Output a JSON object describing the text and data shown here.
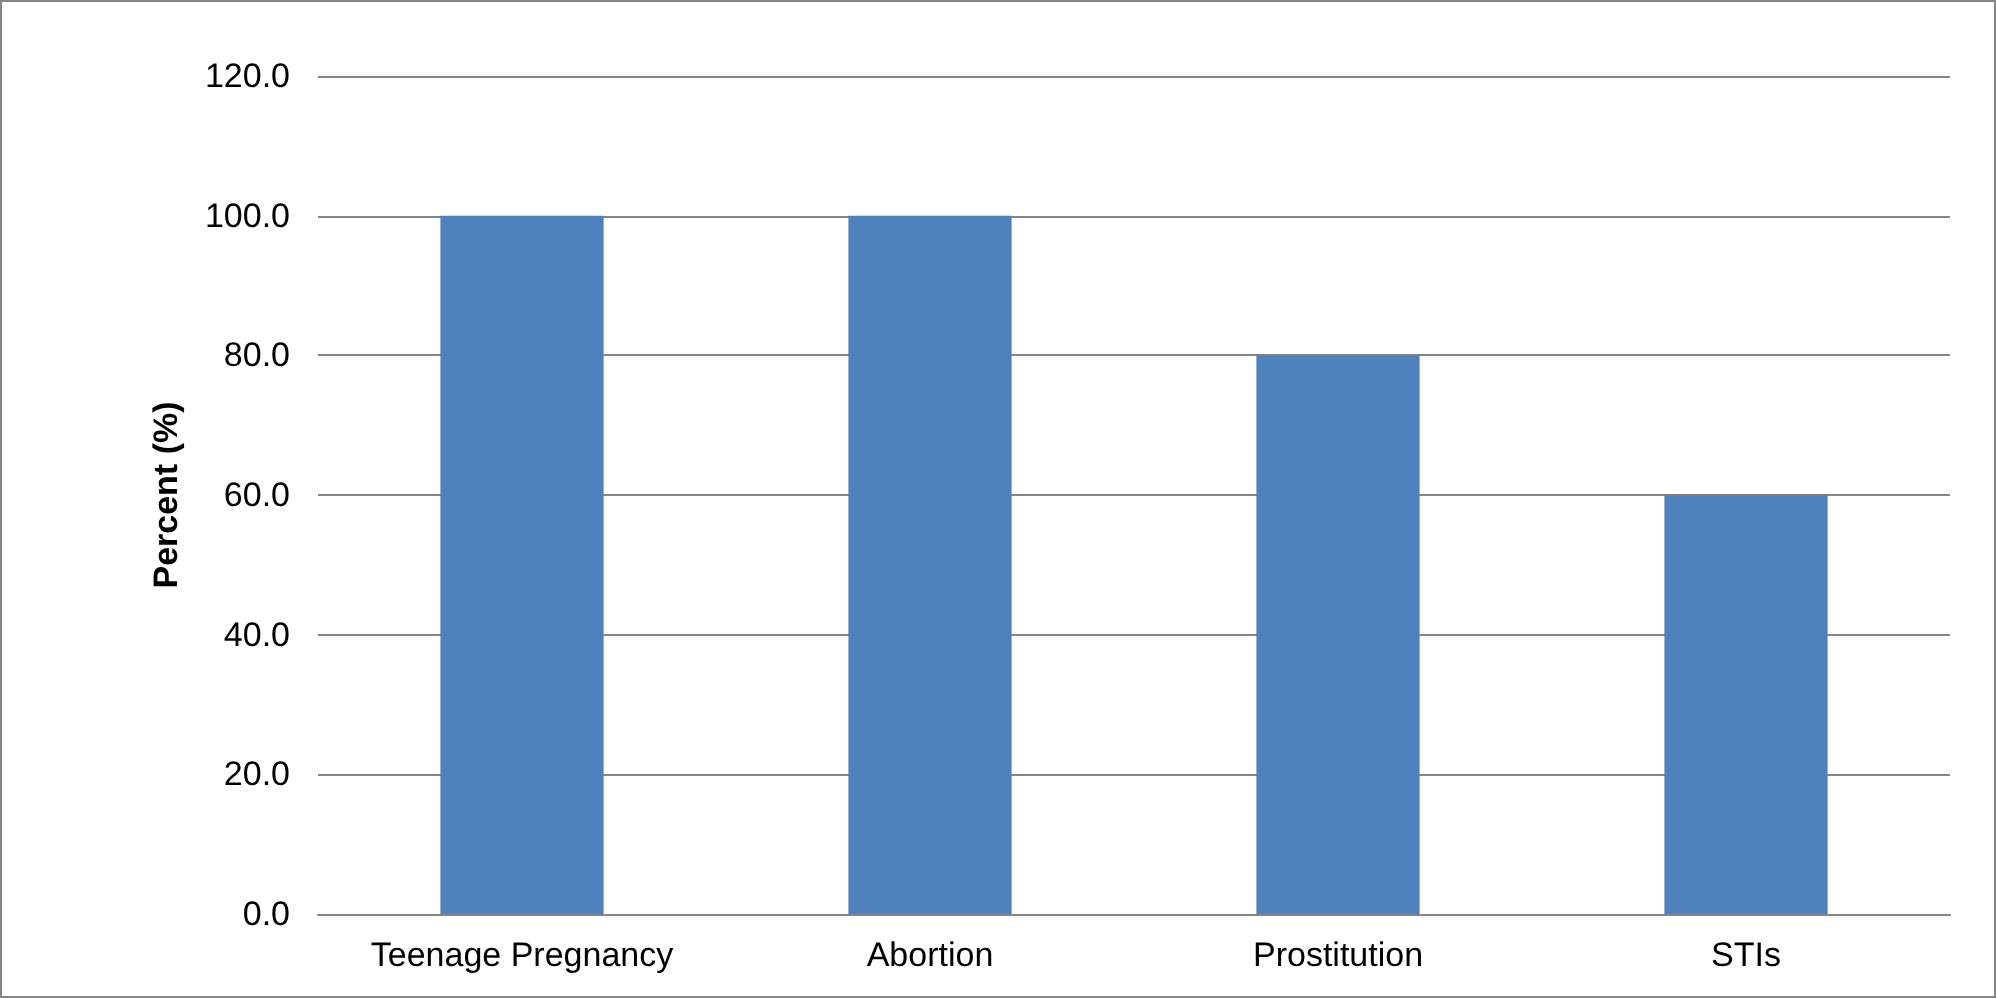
{
  "chart_data": {
    "type": "bar",
    "ylabel": "Percent (%)",
    "categories": [
      "Teenage Pregnancy",
      "Abortion",
      "Prostitution",
      "STIs"
    ],
    "values": [
      100,
      100,
      80,
      60
    ],
    "color": "#4f81bd",
    "ylim": [
      0,
      120
    ],
    "yticks": [
      {
        "value": 0,
        "label": "0.0"
      },
      {
        "value": 20,
        "label": "20.0"
      },
      {
        "value": 40,
        "label": "40.0"
      },
      {
        "value": 60,
        "label": "60.0"
      },
      {
        "value": 80,
        "label": "80.0"
      },
      {
        "value": 100,
        "label": "100.0"
      },
      {
        "value": 120,
        "label": "120.0"
      }
    ],
    "grid": "y"
  }
}
